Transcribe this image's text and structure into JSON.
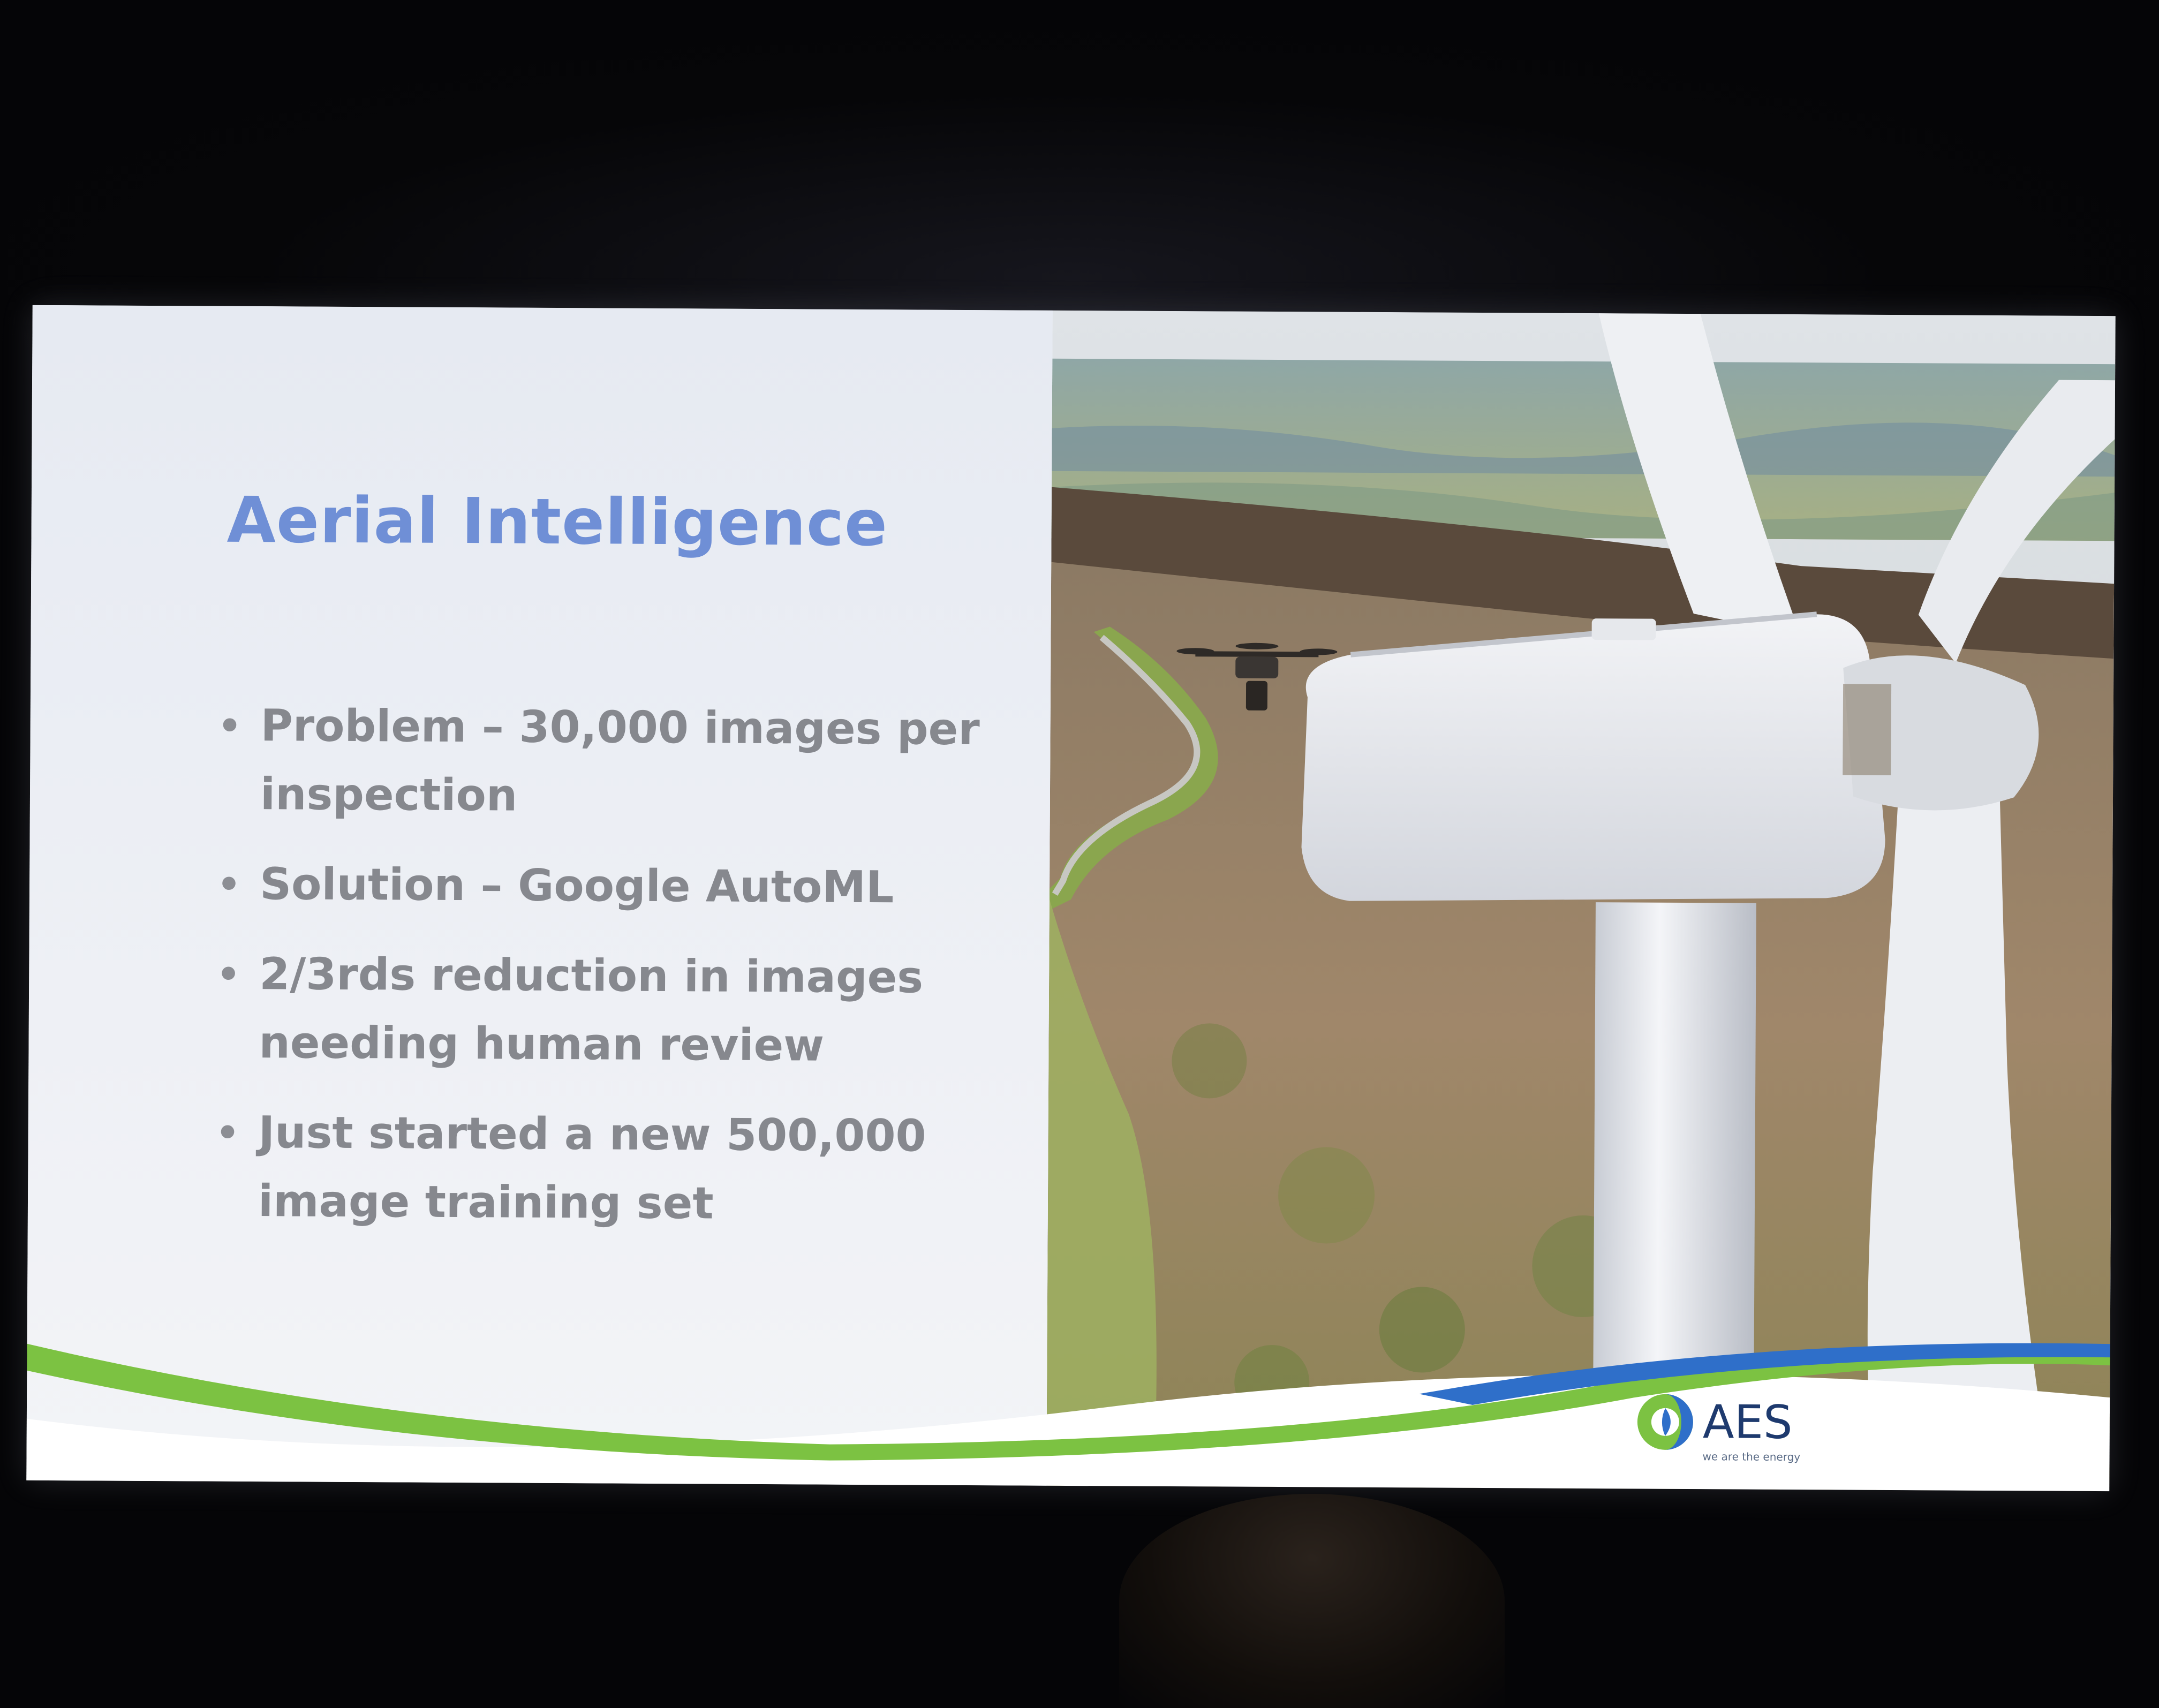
{
  "slide": {
    "title": "Aerial Intelligence",
    "bullets": [
      "Problem – 30,000 images per inspection",
      "Solution – Google AutoML",
      "2/3rds reduction in images needing human review",
      "Just started a new 500,000 image training set"
    ],
    "bullet_glyph": "•"
  },
  "logo": {
    "name": "AES",
    "tagline": "we are the energy"
  },
  "colors": {
    "title": "#6f8fd6",
    "bullet_text": "#86888e",
    "swoosh_green": "#7cc242",
    "swoosh_blue": "#2f6fc9",
    "logo_navy": "#1e3a6e"
  },
  "icons": {
    "photo": "wind-turbine-with-drone-photo",
    "logo_mark": "aes-logo-icon"
  }
}
